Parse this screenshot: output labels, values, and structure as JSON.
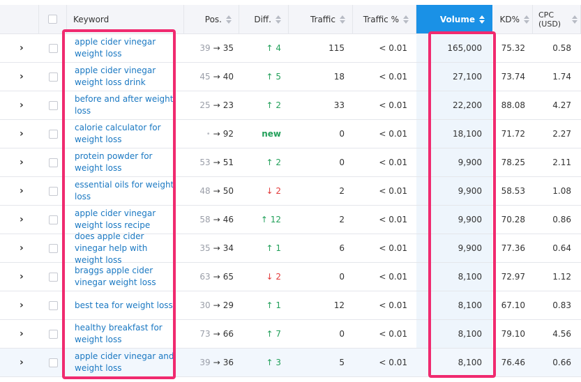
{
  "columns": {
    "keyword": "Keyword",
    "position": "Pos.",
    "difficulty": "Diff.",
    "traffic": "Traffic",
    "traffic_percent": "Traffic %",
    "volume": "Volume",
    "kd": "KD%",
    "cpc": "CPC (USD)"
  },
  "sorted_by": "Volume",
  "colors": {
    "accent": "#1a91e6",
    "highlight_outline": "#f02a6f",
    "link": "#1a78c2",
    "positive": "#22a05a",
    "negative": "#e23a3a"
  },
  "rows": [
    {
      "keyword": "apple cider vinegar weight loss",
      "pos_prev": "39",
      "pos_now": "35",
      "diff": "4",
      "diff_dir": "up",
      "traffic": "115",
      "traffic_pct": "< 0.01",
      "volume": "165,000",
      "kd": "75.32",
      "cpc": "0.58"
    },
    {
      "keyword": "apple cider vinegar weight loss drink",
      "pos_prev": "45",
      "pos_now": "40",
      "diff": "5",
      "diff_dir": "up",
      "traffic": "18",
      "traffic_pct": "< 0.01",
      "volume": "27,100",
      "kd": "73.74",
      "cpc": "1.74"
    },
    {
      "keyword": "before and after weight loss",
      "pos_prev": "25",
      "pos_now": "23",
      "diff": "2",
      "diff_dir": "up",
      "traffic": "33",
      "traffic_pct": "< 0.01",
      "volume": "22,200",
      "kd": "88.08",
      "cpc": "4.27"
    },
    {
      "keyword": "calorie calculator for weight loss",
      "pos_prev": "•",
      "pos_now": "92",
      "diff": "new",
      "diff_dir": "new",
      "traffic": "0",
      "traffic_pct": "< 0.01",
      "volume": "18,100",
      "kd": "71.72",
      "cpc": "2.27"
    },
    {
      "keyword": "protein powder for weight loss",
      "pos_prev": "53",
      "pos_now": "51",
      "diff": "2",
      "diff_dir": "up",
      "traffic": "0",
      "traffic_pct": "< 0.01",
      "volume": "9,900",
      "kd": "78.25",
      "cpc": "2.11"
    },
    {
      "keyword": "essential oils for weight loss",
      "pos_prev": "48",
      "pos_now": "50",
      "diff": "2",
      "diff_dir": "down",
      "traffic": "2",
      "traffic_pct": "< 0.01",
      "volume": "9,900",
      "kd": "58.53",
      "cpc": "1.08"
    },
    {
      "keyword": "apple cider vinegar weight loss recipe",
      "pos_prev": "58",
      "pos_now": "46",
      "diff": "12",
      "diff_dir": "up",
      "traffic": "2",
      "traffic_pct": "< 0.01",
      "volume": "9,900",
      "kd": "70.28",
      "cpc": "0.86"
    },
    {
      "keyword": "does apple cider vinegar help with weight loss",
      "pos_prev": "35",
      "pos_now": "34",
      "diff": "1",
      "diff_dir": "up",
      "traffic": "6",
      "traffic_pct": "< 0.01",
      "volume": "9,900",
      "kd": "77.36",
      "cpc": "0.64"
    },
    {
      "keyword": "braggs apple cider vinegar weight loss",
      "pos_prev": "63",
      "pos_now": "65",
      "diff": "2",
      "diff_dir": "down",
      "traffic": "0",
      "traffic_pct": "< 0.01",
      "volume": "8,100",
      "kd": "72.97",
      "cpc": "1.12"
    },
    {
      "keyword": "best tea for weight loss",
      "pos_prev": "30",
      "pos_now": "29",
      "diff": "1",
      "diff_dir": "up",
      "traffic": "12",
      "traffic_pct": "< 0.01",
      "volume": "8,100",
      "kd": "67.10",
      "cpc": "0.83"
    },
    {
      "keyword": "healthy breakfast for weight loss",
      "pos_prev": "73",
      "pos_now": "66",
      "diff": "7",
      "diff_dir": "up",
      "traffic": "0",
      "traffic_pct": "< 0.01",
      "volume": "8,100",
      "kd": "79.10",
      "cpc": "4.56"
    },
    {
      "keyword": "apple cider vinegar and weight loss",
      "pos_prev": "39",
      "pos_now": "36",
      "diff": "3",
      "diff_dir": "up",
      "traffic": "5",
      "traffic_pct": "< 0.01",
      "volume": "8,100",
      "kd": "76.46",
      "cpc": "0.66",
      "highlight": true
    }
  ]
}
